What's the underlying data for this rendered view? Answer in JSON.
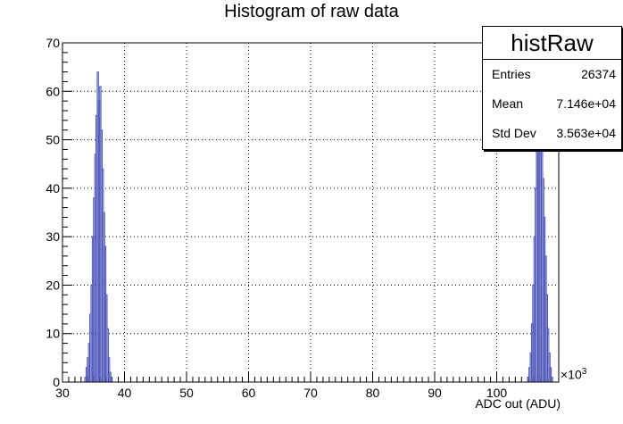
{
  "chart_data": {
    "type": "histogram",
    "title": "Histogram of raw data",
    "xlabel": "ADC out (ADU)",
    "ylabel": "",
    "x_multiplier": "×10",
    "x_multiplier_exp": "3",
    "xlim": [
      30,
      110
    ],
    "ylim": [
      0,
      70
    ],
    "x_ticks": [
      30,
      40,
      50,
      60,
      70,
      80,
      90,
      100
    ],
    "y_ticks": [
      0,
      10,
      20,
      30,
      40,
      50,
      60,
      70
    ],
    "grid": true,
    "bin_width": 0.2,
    "bins": [
      {
        "x": 33.6,
        "y": 1
      },
      {
        "x": 33.8,
        "y": 3
      },
      {
        "x": 34.0,
        "y": 5
      },
      {
        "x": 34.2,
        "y": 8
      },
      {
        "x": 34.4,
        "y": 14
      },
      {
        "x": 34.6,
        "y": 20
      },
      {
        "x": 34.8,
        "y": 30
      },
      {
        "x": 35.0,
        "y": 38
      },
      {
        "x": 35.2,
        "y": 47
      },
      {
        "x": 35.4,
        "y": 55
      },
      {
        "x": 35.6,
        "y": 64
      },
      {
        "x": 35.8,
        "y": 58
      },
      {
        "x": 36.0,
        "y": 61
      },
      {
        "x": 36.2,
        "y": 52
      },
      {
        "x": 36.4,
        "y": 44
      },
      {
        "x": 36.6,
        "y": 35
      },
      {
        "x": 36.8,
        "y": 28
      },
      {
        "x": 37.0,
        "y": 18
      },
      {
        "x": 37.2,
        "y": 11
      },
      {
        "x": 37.4,
        "y": 5
      },
      {
        "x": 37.6,
        "y": 2
      },
      {
        "x": 37.8,
        "y": 1
      },
      {
        "x": 105.0,
        "y": 1
      },
      {
        "x": 105.2,
        "y": 3
      },
      {
        "x": 105.4,
        "y": 6
      },
      {
        "x": 105.6,
        "y": 12
      },
      {
        "x": 105.8,
        "y": 20
      },
      {
        "x": 106.0,
        "y": 30
      },
      {
        "x": 106.2,
        "y": 40
      },
      {
        "x": 106.4,
        "y": 50
      },
      {
        "x": 106.6,
        "y": 56
      },
      {
        "x": 106.8,
        "y": 58
      },
      {
        "x": 107.0,
        "y": 55
      },
      {
        "x": 107.2,
        "y": 50
      },
      {
        "x": 107.4,
        "y": 42
      },
      {
        "x": 107.6,
        "y": 34
      },
      {
        "x": 107.8,
        "y": 26
      },
      {
        "x": 108.0,
        "y": 18
      },
      {
        "x": 108.2,
        "y": 11
      },
      {
        "x": 108.4,
        "y": 6
      },
      {
        "x": 108.6,
        "y": 3
      },
      {
        "x": 108.8,
        "y": 1
      }
    ],
    "line_color": "#4b55b8"
  },
  "stats": {
    "name": "histRaw",
    "rows": [
      {
        "label": "Entries",
        "value": "26374"
      },
      {
        "label": "Mean",
        "value": "7.146e+04"
      },
      {
        "label": "Std Dev",
        "value": "3.563e+04"
      }
    ]
  }
}
